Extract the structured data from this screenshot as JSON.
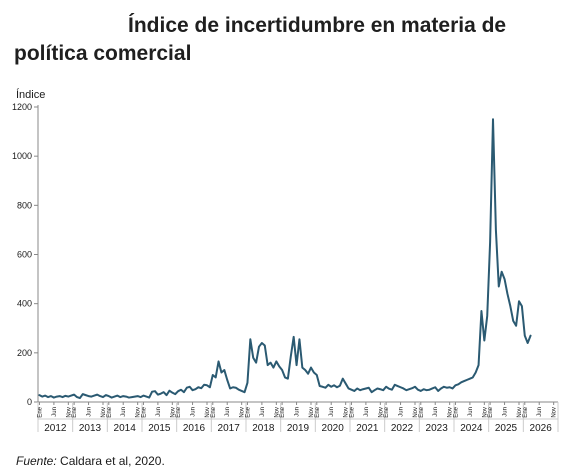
{
  "title_line1": "Índice de incertidumbre en materia de",
  "title_line2": "política comercial",
  "source_label": "Fuente:",
  "source_text": " Caldara et al, 2020.",
  "colors": {
    "line": "#2b5a72",
    "axis": "#888888",
    "grid": "#cccccc",
    "text": "#1a1a1a"
  },
  "chart_data": {
    "type": "line",
    "ylabel": "Índice",
    "ylim": [
      0,
      1200
    ],
    "yticks": [
      0,
      200,
      400,
      600,
      800,
      1000,
      1200
    ],
    "year_labels": [
      "2012",
      "2013",
      "2014",
      "2015",
      "2016",
      "2017",
      "2018",
      "2019",
      "2020",
      "2021",
      "2022",
      "2023",
      "2024",
      "2025",
      "2026"
    ],
    "month_labels": [
      "Ene",
      "Jun",
      "Nov"
    ],
    "grid": false,
    "series": [
      {
        "x": [
          "2012-01",
          "2012-02",
          "2012-03",
          "2012-04",
          "2012-05",
          "2012-06",
          "2012-07",
          "2012-08",
          "2012-09",
          "2012-10",
          "2012-11",
          "2012-12",
          "2013-01",
          "2013-02",
          "2013-03",
          "2013-04",
          "2013-05",
          "2013-06",
          "2013-07",
          "2013-08",
          "2013-09",
          "2013-10",
          "2013-11",
          "2013-12",
          "2014-01",
          "2014-02",
          "2014-03",
          "2014-04",
          "2014-05",
          "2014-06",
          "2014-07",
          "2014-08",
          "2014-09",
          "2014-10",
          "2014-11",
          "2014-12",
          "2015-01",
          "2015-02",
          "2015-03",
          "2015-04",
          "2015-05",
          "2015-06",
          "2015-07",
          "2015-08",
          "2015-09",
          "2015-10",
          "2015-11",
          "2015-12",
          "2016-01",
          "2016-02",
          "2016-03",
          "2016-04",
          "2016-05",
          "2016-06",
          "2016-07",
          "2016-08",
          "2016-09",
          "2016-10",
          "2016-11",
          "2016-12",
          "2017-01",
          "2017-02",
          "2017-03",
          "2017-04",
          "2017-05",
          "2017-06",
          "2017-07",
          "2017-08",
          "2017-09",
          "2017-10",
          "2017-11",
          "2017-12",
          "2018-01",
          "2018-02",
          "2018-03",
          "2018-04",
          "2018-05",
          "2018-06",
          "2018-07",
          "2018-08",
          "2018-09",
          "2018-10",
          "2018-11",
          "2018-12",
          "2019-01",
          "2019-02",
          "2019-03",
          "2019-04",
          "2019-05",
          "2019-06",
          "2019-07",
          "2019-08",
          "2019-09",
          "2019-10",
          "2019-11",
          "2019-12",
          "2020-01",
          "2020-02",
          "2020-03",
          "2020-04",
          "2020-05",
          "2020-06",
          "2020-07",
          "2020-08",
          "2020-09",
          "2020-10",
          "2020-11",
          "2020-12",
          "2021-01",
          "2021-02",
          "2021-03",
          "2021-04",
          "2021-05",
          "2021-06",
          "2021-07",
          "2021-08",
          "2021-09",
          "2021-10",
          "2021-11",
          "2021-12",
          "2022-01",
          "2022-02",
          "2022-03",
          "2022-04",
          "2022-05",
          "2022-06",
          "2022-07",
          "2022-08",
          "2022-09",
          "2022-10",
          "2022-11",
          "2022-12",
          "2023-01",
          "2023-02",
          "2023-03",
          "2023-04",
          "2023-05",
          "2023-06",
          "2023-07",
          "2023-08",
          "2023-09",
          "2023-10",
          "2023-11",
          "2023-12",
          "2024-01",
          "2024-02",
          "2024-03",
          "2024-04",
          "2024-05",
          "2024-06",
          "2024-07",
          "2024-08",
          "2024-09",
          "2024-10",
          "2024-11",
          "2024-12",
          "2025-01",
          "2025-02",
          "2025-03",
          "2025-04",
          "2025-05",
          "2025-06",
          "2025-07",
          "2025-08",
          "2025-09",
          "2025-10",
          "2025-11",
          "2025-12",
          "2026-01",
          "2026-02",
          "2026-03"
        ],
        "y": [
          28,
          22,
          26,
          20,
          24,
          18,
          22,
          24,
          20,
          25,
          22,
          26,
          30,
          20,
          16,
          32,
          28,
          24,
          22,
          26,
          30,
          24,
          20,
          28,
          24,
          18,
          22,
          26,
          20,
          24,
          22,
          18,
          20,
          22,
          24,
          20,
          26,
          22,
          18,
          42,
          44,
          30,
          34,
          40,
          28,
          46,
          38,
          32,
          44,
          50,
          40,
          58,
          62,
          48,
          52,
          60,
          56,
          70,
          68,
          60,
          110,
          100,
          165,
          120,
          130,
          90,
          55,
          60,
          58,
          50,
          45,
          40,
          78,
          255,
          180,
          160,
          225,
          240,
          230,
          150,
          160,
          140,
          165,
          145,
          130,
          100,
          95,
          185,
          265,
          150,
          255,
          140,
          130,
          115,
          140,
          120,
          110,
          65,
          62,
          58,
          70,
          62,
          68,
          60,
          66,
          95,
          75,
          55,
          50,
          45,
          55,
          48,
          52,
          55,
          58,
          40,
          48,
          55,
          52,
          48,
          62,
          54,
          50,
          70,
          65,
          60,
          55,
          48,
          52,
          56,
          62,
          50,
          45,
          52,
          48,
          50,
          55,
          60,
          45,
          55,
          62,
          58,
          60,
          55,
          68,
          72,
          80,
          85,
          90,
          95,
          100,
          120,
          150,
          370,
          250,
          350,
          650,
          1150,
          700,
          470,
          530,
          500,
          440,
          390,
          330,
          310,
          410,
          390,
          270,
          240,
          270
        ]
      }
    ]
  }
}
